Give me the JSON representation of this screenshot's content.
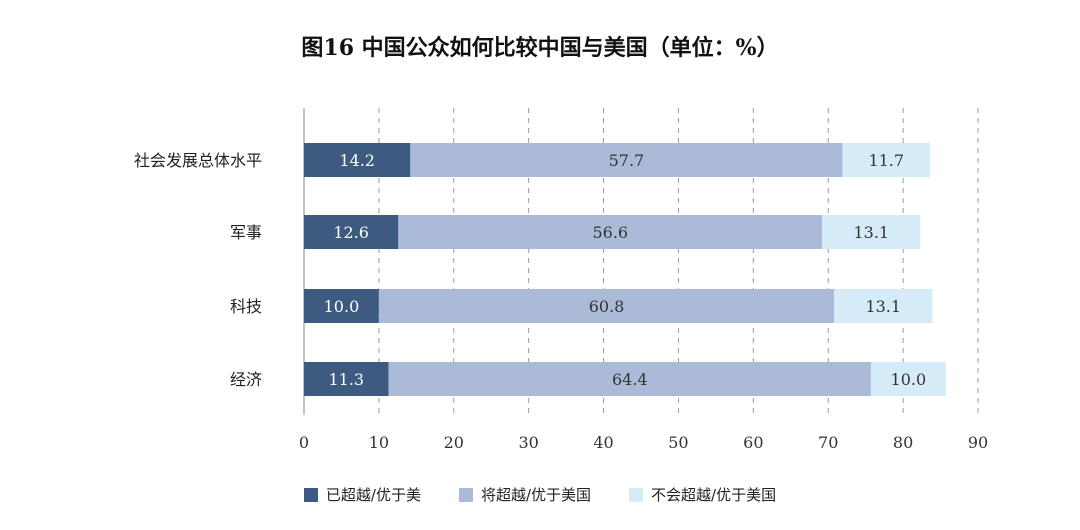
{
  "chart_data": {
    "type": "bar",
    "orientation": "horizontal",
    "stacked": true,
    "title": "图16 中国公众如何比较中国与美国（单位：%）",
    "categories": [
      "社会发展总体水平",
      "军事",
      "科技",
      "经济"
    ],
    "series": [
      {
        "name": "已超越/优于美",
        "values": [
          14.2,
          12.6,
          10.0,
          11.3
        ],
        "color": "#3d5a80"
      },
      {
        "name": "将超越/优于美国",
        "values": [
          57.7,
          56.6,
          60.8,
          64.4
        ],
        "color": "#abbbd7"
      },
      {
        "name": "不会超越/优于美国",
        "values": [
          11.7,
          13.1,
          13.1,
          10.0
        ],
        "color": "#d5ecf8"
      }
    ],
    "xlim": [
      0,
      90
    ],
    "xticks": [
      "0",
      "10",
      "20",
      "30",
      "40",
      "50",
      "60",
      "70",
      "80",
      "90"
    ],
    "grid": "vertical dashed",
    "legend_position": "bottom"
  }
}
